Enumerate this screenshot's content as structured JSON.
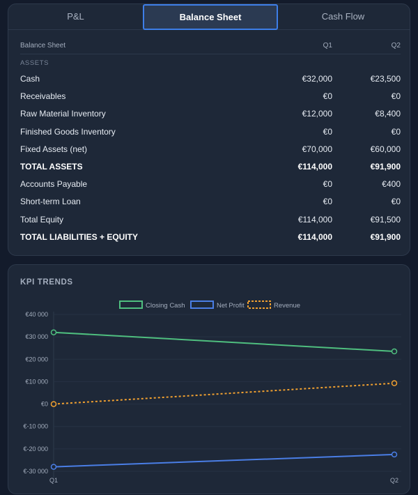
{
  "tabs": [
    {
      "label": "P&L",
      "active": false
    },
    {
      "label": "Balance Sheet",
      "active": true
    },
    {
      "label": "Cash Flow",
      "active": false
    }
  ],
  "balance_sheet": {
    "header": {
      "label": "Balance Sheet",
      "q1": "Q1",
      "q2": "Q2"
    },
    "section_assets": "ASSETS",
    "rows": [
      {
        "label": "Cash",
        "q1": "€32,000",
        "q2": "€23,500",
        "bold": false
      },
      {
        "label": "Receivables",
        "q1": "€0",
        "q2": "€0",
        "bold": false
      },
      {
        "label": "Raw Material Inventory",
        "q1": "€12,000",
        "q2": "€8,400",
        "bold": false
      },
      {
        "label": "Finished Goods Inventory",
        "q1": "€0",
        "q2": "€0",
        "bold": false
      },
      {
        "label": "Fixed Assets (net)",
        "q1": "€70,000",
        "q2": "€60,000",
        "bold": false
      },
      {
        "label": "TOTAL ASSETS",
        "q1": "€114,000",
        "q2": "€91,900",
        "bold": true
      },
      {
        "label": "Accounts Payable",
        "q1": "€0",
        "q2": "€400",
        "bold": false
      },
      {
        "label": "Short-term Loan",
        "q1": "€0",
        "q2": "€0",
        "bold": false
      },
      {
        "label": "Total Equity",
        "q1": "€114,000",
        "q2": "€91,500",
        "bold": false
      },
      {
        "label": "TOTAL LIABILITIES + EQUITY",
        "q1": "€114,000",
        "q2": "€91,900",
        "bold": true
      }
    ]
  },
  "kpi": {
    "title": "KPI TRENDS"
  },
  "chart_data": {
    "type": "line",
    "x": [
      "Q1",
      "Q2"
    ],
    "series": [
      {
        "name": "Closing Cash",
        "values": [
          32000,
          23500
        ],
        "color": "#4fbf7f",
        "dashed": false
      },
      {
        "name": "Net Profit",
        "values": [
          -28000,
          -22500
        ],
        "color": "#4a7ee6",
        "dashed": false
      },
      {
        "name": "Revenue",
        "values": [
          0,
          9300
        ],
        "color": "#f0a030",
        "dashed": true
      }
    ],
    "yticks": [
      {
        "value": 40000,
        "label": "€40 000"
      },
      {
        "value": 30000,
        "label": "€30 000"
      },
      {
        "value": 20000,
        "label": "€20 000"
      },
      {
        "value": 10000,
        "label": "€10 000"
      },
      {
        "value": 0,
        "label": "€0"
      },
      {
        "value": -10000,
        "label": "€-10 000"
      },
      {
        "value": -20000,
        "label": "€-20 000"
      },
      {
        "value": -30000,
        "label": "€-30 000"
      }
    ],
    "ylim": [
      -30000,
      40000
    ],
    "legend_position": "top-center",
    "grid": true
  }
}
